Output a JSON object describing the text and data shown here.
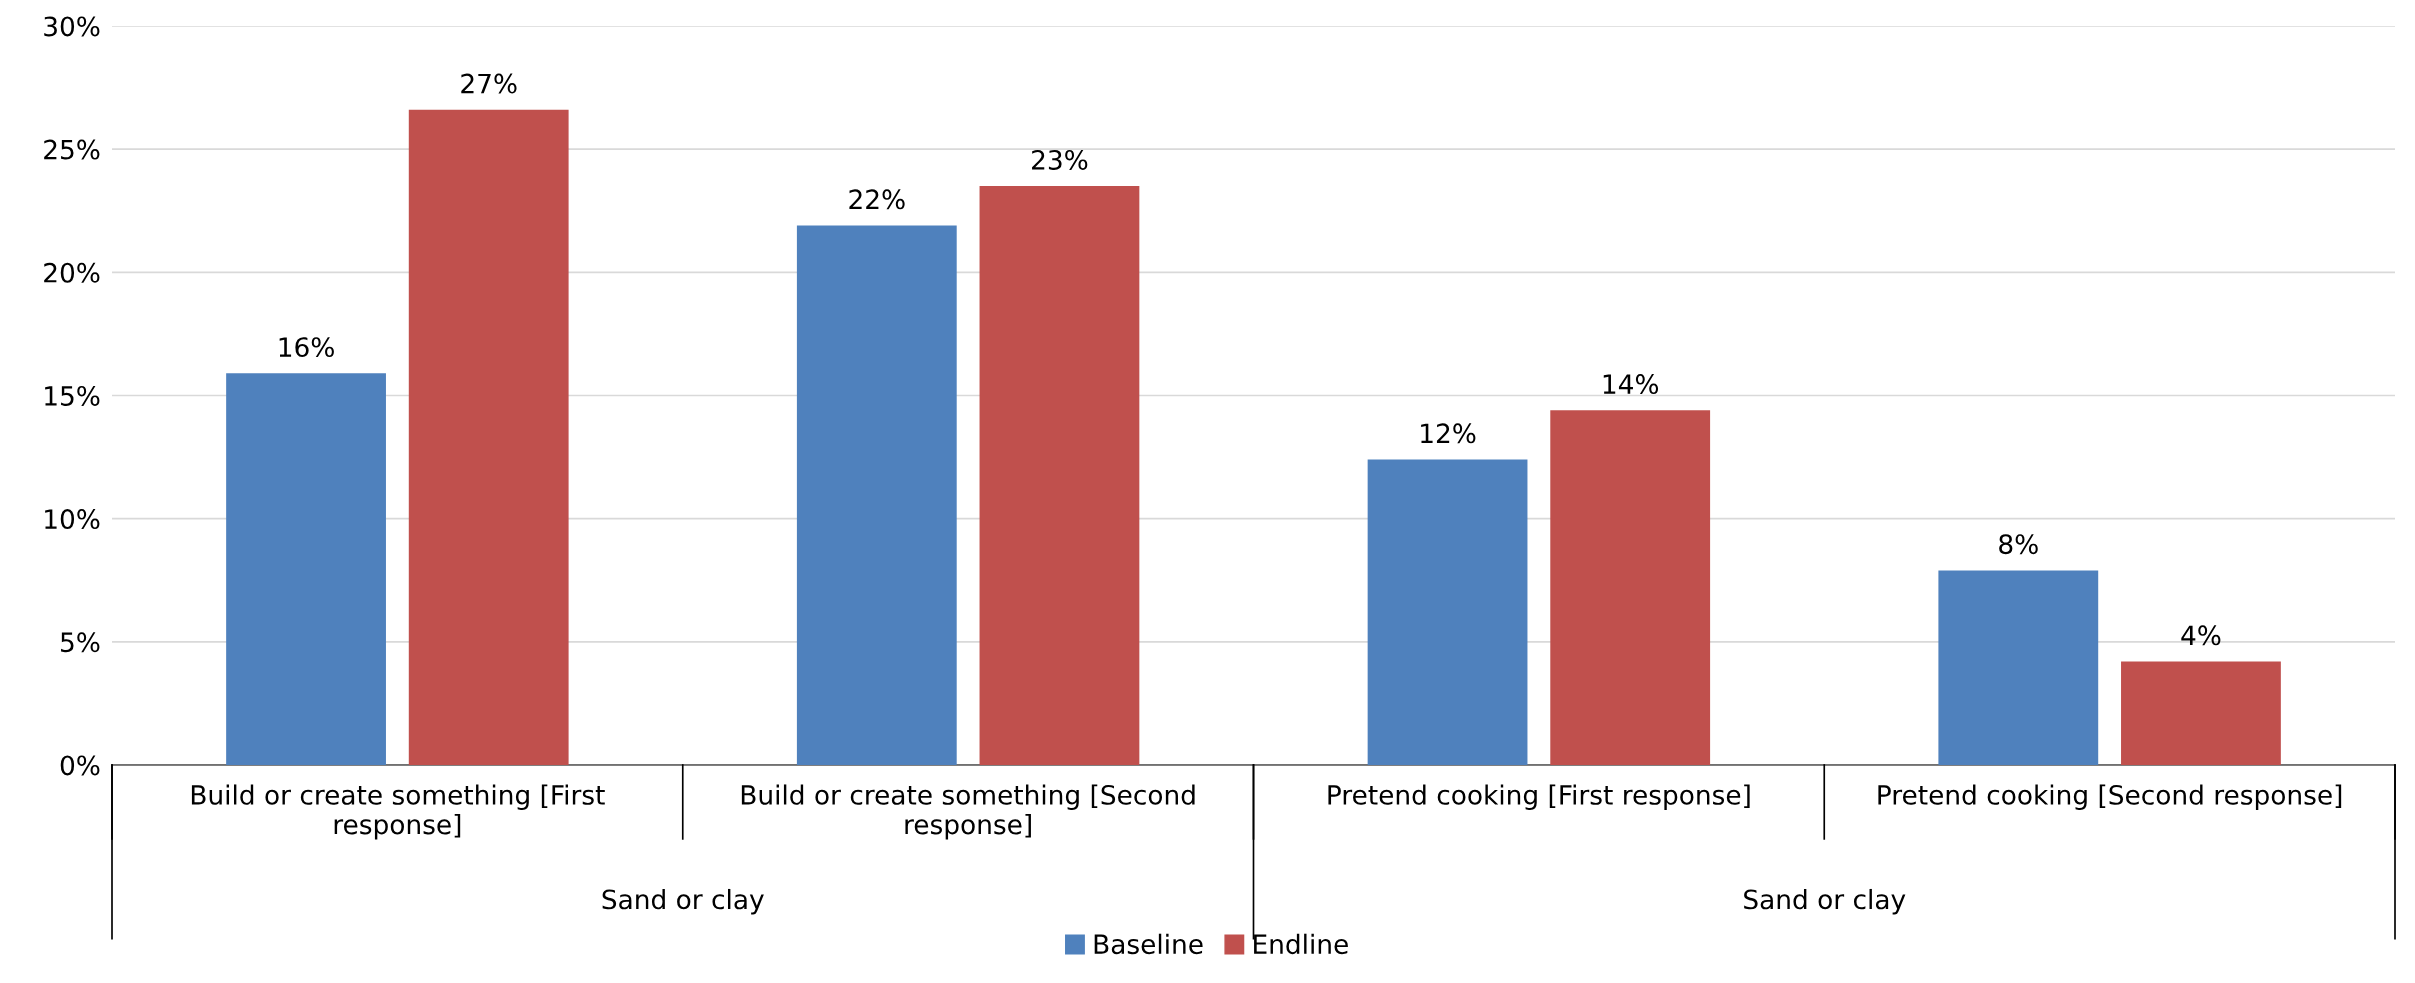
{
  "chart_data": {
    "type": "bar",
    "categories": [
      "Build or create something [First\nresponse]",
      "Build or create something [Second\nresponse]",
      "Pretend cooking [First response]",
      "Pretend cooking [Second response]"
    ],
    "series": [
      {
        "name": "Baseline",
        "color": "#4f81bd",
        "values": [
          15.9,
          21.9,
          12.4,
          7.9
        ],
        "value_labels": [
          "16%",
          "22%",
          "12%",
          "8%"
        ]
      },
      {
        "name": "Endline",
        "color": "#c0504d",
        "values": [
          26.6,
          23.5,
          14.4,
          4.2
        ],
        "value_labels": [
          "27%",
          "23%",
          "14%",
          "4%"
        ]
      }
    ],
    "annotations": [
      "Sand or clay",
      "Sand or clay"
    ],
    "ylim": [
      0,
      30
    ],
    "yticks": [
      {
        "value": 0,
        "label": "0%"
      },
      {
        "value": 5,
        "label": "5%"
      },
      {
        "value": 10,
        "label": "10%"
      },
      {
        "value": 15,
        "label": "15%"
      },
      {
        "value": 20,
        "label": "20%"
      },
      {
        "value": 25,
        "label": "25%"
      },
      {
        "value": 30,
        "label": "30%"
      }
    ],
    "grid": "y",
    "legend": "bottom"
  }
}
